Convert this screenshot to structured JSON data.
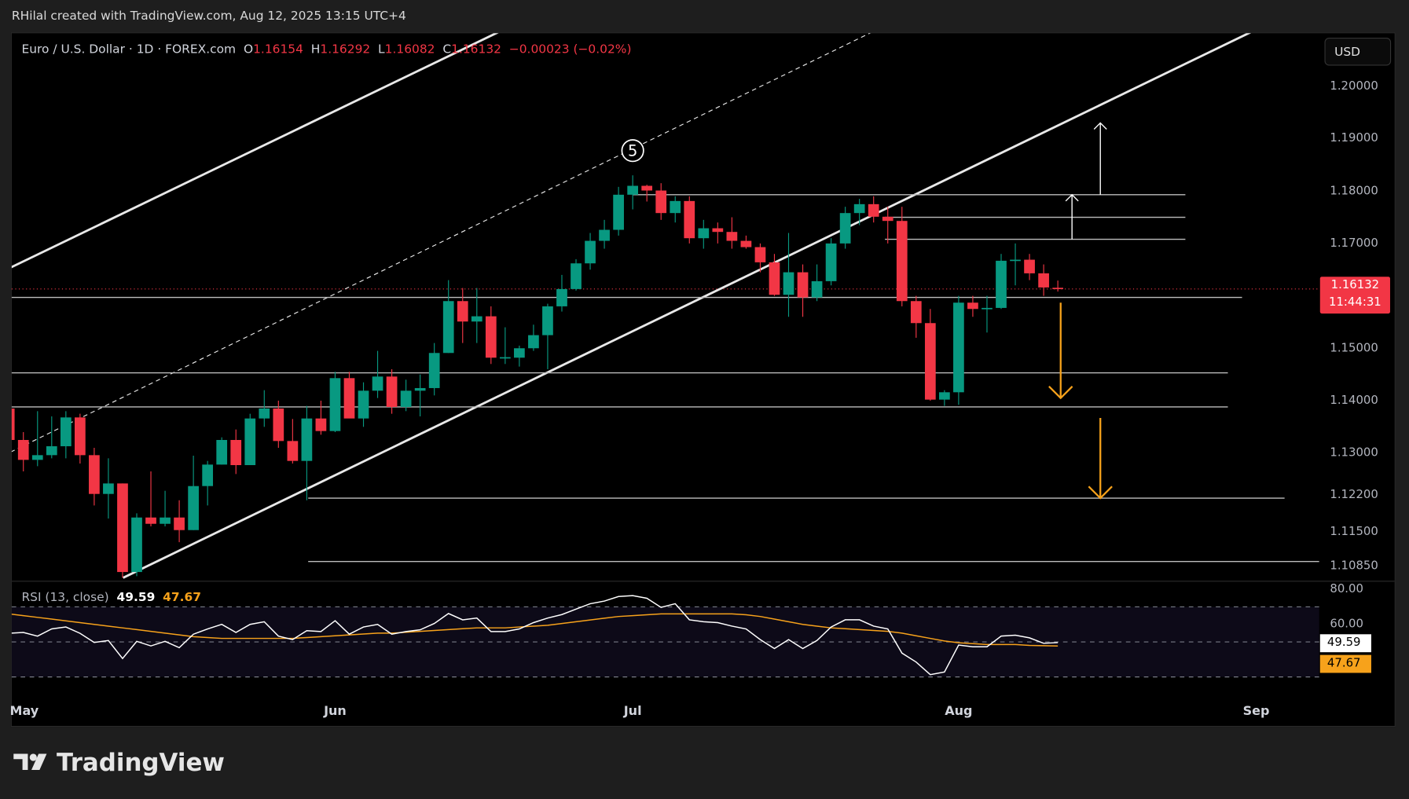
{
  "credit": "RHilal created with TradingView.com, Aug 12, 2025 13:15 UTC+4",
  "legend": {
    "symbol": "Euro / U.S. Dollar · 1D · FOREX.com",
    "o_label": "O",
    "o": "1.16154",
    "h_label": "H",
    "h": "1.16292",
    "l_label": "L",
    "l": "1.16082",
    "c_label": "C",
    "c": "1.16132",
    "change": "−0.00023 (−0.02%)"
  },
  "currency_button": "USD",
  "price_ticks": [
    "1.20000",
    "1.19000",
    "1.18000",
    "1.17000",
    "1.15000",
    "1.14000",
    "1.13000",
    "1.12200",
    "1.11500",
    "1.10850"
  ],
  "price_tag": {
    "price": "1.16132",
    "countdown": "11:44:31"
  },
  "rsi": {
    "label": "RSI (13, close)",
    "value": "49.59",
    "ma_value": "47.67",
    "ticks": [
      "80.00",
      "60.00"
    ]
  },
  "time_labels": [
    {
      "label": "May",
      "bar": 2
    },
    {
      "label": "Jun",
      "bar": 24
    },
    {
      "label": "Jul",
      "bar": 45
    },
    {
      "label": "Aug",
      "bar": 68
    },
    {
      "label": "Sep",
      "bar": 89
    }
  ],
  "wave_label": "5",
  "brand": "TradingView",
  "colors": {
    "up": "#089981",
    "down": "#f23645",
    "arrow_orange": "#f7a21b",
    "line": "#d0d0d0",
    "rsi": "#ffffff",
    "rsi_ma": "#f7a21b"
  },
  "chart_data": {
    "type": "candlestick",
    "title": "Euro / U.S. Dollar · 1D · FOREX.com",
    "price_scale": [
      1.1085,
      1.2
    ],
    "ohlc": [
      [
        1.1385,
        1.1395,
        1.13,
        1.1325
      ],
      [
        1.1325,
        1.134,
        1.1265,
        1.1287
      ],
      [
        1.1287,
        1.138,
        1.1275,
        1.1296
      ],
      [
        1.1296,
        1.137,
        1.129,
        1.1313
      ],
      [
        1.1313,
        1.138,
        1.129,
        1.1368
      ],
      [
        1.1368,
        1.1375,
        1.128,
        1.1296
      ],
      [
        1.1296,
        1.131,
        1.12,
        1.1222
      ],
      [
        1.1222,
        1.129,
        1.1175,
        1.1242
      ],
      [
        1.1242,
        1.1242,
        1.1062,
        1.1073
      ],
      [
        1.1073,
        1.1185,
        1.1065,
        1.1177
      ],
      [
        1.1177,
        1.1265,
        1.116,
        1.1165
      ],
      [
        1.1165,
        1.1228,
        1.116,
        1.1177
      ],
      [
        1.1177,
        1.121,
        1.113,
        1.1153
      ],
      [
        1.1153,
        1.1295,
        1.1153,
        1.1237
      ],
      [
        1.1237,
        1.1285,
        1.12,
        1.1278
      ],
      [
        1.1278,
        1.133,
        1.1278,
        1.1325
      ],
      [
        1.1325,
        1.1345,
        1.126,
        1.1277
      ],
      [
        1.1277,
        1.1375,
        1.1277,
        1.1366
      ],
      [
        1.1366,
        1.142,
        1.135,
        1.1385
      ],
      [
        1.1385,
        1.14,
        1.131,
        1.1323
      ],
      [
        1.1323,
        1.1365,
        1.128,
        1.1285
      ],
      [
        1.1285,
        1.139,
        1.121,
        1.1366
      ],
      [
        1.1366,
        1.14,
        1.1335,
        1.1342
      ],
      [
        1.1342,
        1.1455,
        1.134,
        1.1443
      ],
      [
        1.1443,
        1.1455,
        1.137,
        1.1366
      ],
      [
        1.1366,
        1.1435,
        1.135,
        1.1419
      ],
      [
        1.1419,
        1.1495,
        1.1405,
        1.1446
      ],
      [
        1.1446,
        1.146,
        1.1375,
        1.1388
      ],
      [
        1.1388,
        1.144,
        1.138,
        1.1419
      ],
      [
        1.1419,
        1.145,
        1.137,
        1.1424
      ],
      [
        1.1424,
        1.151,
        1.141,
        1.1491
      ],
      [
        1.1491,
        1.163,
        1.1491,
        1.159
      ],
      [
        1.159,
        1.1615,
        1.151,
        1.1551
      ],
      [
        1.1551,
        1.1615,
        1.151,
        1.1561
      ],
      [
        1.1561,
        1.158,
        1.147,
        1.1482
      ],
      [
        1.1482,
        1.154,
        1.147,
        1.1483
      ],
      [
        1.1482,
        1.1505,
        1.1465,
        1.15
      ],
      [
        1.15,
        1.1545,
        1.1495,
        1.1525
      ],
      [
        1.1525,
        1.1585,
        1.146,
        1.158
      ],
      [
        1.158,
        1.164,
        1.157,
        1.1613
      ],
      [
        1.1613,
        1.167,
        1.161,
        1.1662
      ],
      [
        1.1662,
        1.172,
        1.165,
        1.1705
      ],
      [
        1.1705,
        1.1745,
        1.169,
        1.1726
      ],
      [
        1.1726,
        1.1808,
        1.1715,
        1.1793
      ],
      [
        1.1793,
        1.183,
        1.1765,
        1.181
      ],
      [
        1.181,
        1.1812,
        1.178,
        1.1801
      ],
      [
        1.1801,
        1.1815,
        1.1745,
        1.1758
      ],
      [
        1.1758,
        1.179,
        1.174,
        1.1781
      ],
      [
        1.1781,
        1.179,
        1.17,
        1.171
      ],
      [
        1.171,
        1.1745,
        1.169,
        1.1729
      ],
      [
        1.1729,
        1.174,
        1.17,
        1.1722
      ],
      [
        1.1722,
        1.175,
        1.169,
        1.1705
      ],
      [
        1.1705,
        1.1715,
        1.169,
        1.1693
      ],
      [
        1.1693,
        1.17,
        1.1645,
        1.1664
      ],
      [
        1.1664,
        1.168,
        1.16,
        1.1602
      ],
      [
        1.1602,
        1.172,
        1.156,
        1.1645
      ],
      [
        1.1645,
        1.166,
        1.156,
        1.1597
      ],
      [
        1.1597,
        1.166,
        1.159,
        1.1628
      ],
      [
        1.1628,
        1.171,
        1.162,
        1.17
      ],
      [
        1.17,
        1.177,
        1.169,
        1.1758
      ],
      [
        1.1758,
        1.1785,
        1.1735,
        1.1775
      ],
      [
        1.1775,
        1.179,
        1.174,
        1.1751
      ],
      [
        1.1751,
        1.177,
        1.17,
        1.1743
      ],
      [
        1.1743,
        1.177,
        1.158,
        1.159
      ],
      [
        1.159,
        1.16,
        1.152,
        1.1548
      ],
      [
        1.1548,
        1.1575,
        1.14,
        1.1402
      ],
      [
        1.1402,
        1.142,
        1.139,
        1.1416
      ],
      [
        1.1416,
        1.16,
        1.1392,
        1.1587
      ],
      [
        1.1587,
        1.16,
        1.156,
        1.1575
      ],
      [
        1.1575,
        1.16,
        1.153,
        1.1577
      ],
      [
        1.1577,
        1.168,
        1.1575,
        1.1667
      ],
      [
        1.1667,
        1.17,
        1.162,
        1.1669
      ],
      [
        1.1669,
        1.168,
        1.163,
        1.1643
      ],
      [
        1.1643,
        1.166,
        1.16,
        1.1616
      ],
      [
        1.16154,
        1.16292,
        1.16082,
        1.16132
      ]
    ],
    "last_price": 1.16132,
    "rsi_values": [
      54.9,
      55.4,
      53.3,
      57.4,
      58.5,
      54.9,
      49.7,
      50.8,
      40.5,
      50.3,
      47.7,
      50.3,
      46.7,
      54.4,
      57.4,
      60,
      55.4,
      60,
      61.5,
      53.3,
      51.3,
      56.4,
      55.9,
      62.1,
      54.4,
      58.5,
      60,
      54.4,
      55.9,
      56.9,
      60.5,
      66.2,
      62.6,
      63.6,
      55.9,
      55.9,
      57.4,
      61,
      63.6,
      65.6,
      68.7,
      71.8,
      73.3,
      75.9,
      76.4,
      74.9,
      69.7,
      71.8,
      62.6,
      61.5,
      61,
      59,
      57.4,
      51.3,
      46.2,
      51.3,
      46.2,
      50.8,
      58.5,
      62.6,
      62.6,
      59,
      57.4,
      43.6,
      38.5,
      31.3,
      32.8,
      48.2,
      47.2,
      47.2,
      53.3,
      53.8,
      52.3,
      49.2,
      49.59
    ],
    "rsi_ma_values": [
      66,
      65,
      64,
      63,
      62,
      61,
      60,
      59,
      58,
      57,
      56,
      55,
      54,
      53,
      52.5,
      52,
      52,
      52,
      52,
      52,
      52,
      52.5,
      53,
      53.5,
      54,
      54.5,
      55,
      55,
      55.5,
      56,
      56.5,
      57,
      57.5,
      58,
      58,
      58,
      58.5,
      59,
      59.5,
      60.5,
      61.5,
      62.5,
      63.5,
      64.5,
      65,
      65.5,
      66,
      66,
      66,
      66,
      66,
      66,
      65.5,
      64.5,
      63,
      61.5,
      60,
      59,
      58,
      57.5,
      57,
      56.5,
      56,
      55,
      53.5,
      52,
      50.5,
      49.5,
      49,
      48.5,
      48.5,
      48.5,
      48,
      47.8,
      47.67
    ],
    "rsi_levels": [
      70,
      50,
      30
    ],
    "rsi_range": [
      20,
      80
    ],
    "drawings": {
      "channel_lines": [
        {
          "from": {
            "bar": 9.04,
            "price": 1.1062
          },
          "to": {
            "bar": 88.6,
            "price": 1.2103
          },
          "style": "solid"
        },
        {
          "from": {
            "bar": 1.1,
            "price": 1.1654
          },
          "to": {
            "bar": 35.5,
            "price": 1.2103
          },
          "style": "solid"
        },
        {
          "from": {
            "bar": 1.1,
            "price": 1.1302
          },
          "to": {
            "bar": 61.86,
            "price": 1.2103
          },
          "style": "dashed"
        }
      ],
      "horizontal_lines": [
        {
          "price": 1.1597,
          "from_bar": 1.1,
          "to_bar": 88.0
        },
        {
          "price": 1.1453,
          "from_bar": 1.1,
          "to_bar": 87.0
        },
        {
          "price": 1.1388,
          "from_bar": 1.1,
          "to_bar": 87.0
        },
        {
          "price": 1.1214,
          "from_bar": 22.1,
          "to_bar": 91.0
        },
        {
          "price": 1.1093,
          "from_bar": 22.1,
          "to_bar": 94.0
        },
        {
          "price": 1.1793,
          "from_bar": 45.0,
          "to_bar": 84.0
        },
        {
          "price": 1.175,
          "from_bar": 62.8,
          "to_bar": 84.0
        },
        {
          "price": 1.1708,
          "from_bar": 62.8,
          "to_bar": 84.0
        }
      ],
      "arrows": [
        {
          "bar": 76.0,
          "from_price": 1.1708,
          "to_price": 1.1793,
          "color": "white"
        },
        {
          "bar": 78.0,
          "from_price": 1.1793,
          "to_price": 1.193,
          "color": "white"
        },
        {
          "bar": 75.2,
          "from_price": 1.1587,
          "to_price": 1.1405,
          "color": "orange"
        },
        {
          "bar": 78.0,
          "from_price": 1.1367,
          "to_price": 1.1214,
          "color": "orange"
        }
      ],
      "wave_marker": {
        "bar": 45,
        "price": 1.186
      }
    }
  }
}
